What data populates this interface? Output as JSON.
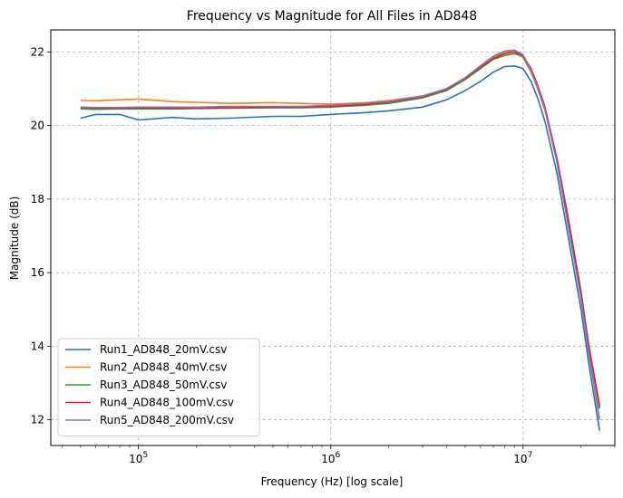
{
  "chart_data": {
    "type": "line",
    "title": "Frequency vs Magnitude for All Files in AD848",
    "xlabel": "Frequency (Hz) [log scale]",
    "ylabel": "Magnitude (dB)",
    "xscale": "log",
    "xlim": [
      35000,
      30000000
    ],
    "ylim": [
      11.3,
      22.6
    ],
    "grid": true,
    "legend_position": "lower-left",
    "x_ticks": [
      {
        "value": 100000,
        "base": "10",
        "exp": "5"
      },
      {
        "value": 1000000,
        "base": "10",
        "exp": "6"
      },
      {
        "value": 10000000,
        "base": "10",
        "exp": "7"
      }
    ],
    "y_ticks": [
      12,
      14,
      16,
      18,
      20,
      22
    ],
    "series": [
      {
        "name": "Run1_AD848_20mV.csv",
        "color": "#1f77b4",
        "x": [
          50000,
          60000,
          80000,
          100000,
          150000,
          200000,
          300000,
          500000,
          700000,
          1000000,
          1500000,
          2000000,
          3000000,
          4000000,
          5000000,
          6000000,
          7000000,
          8000000,
          9000000,
          10000000,
          11000000,
          12000000,
          13000000,
          15000000,
          17000000,
          20000000,
          22000000,
          25000000
        ],
        "y": [
          20.2,
          20.3,
          20.3,
          20.15,
          20.22,
          20.18,
          20.2,
          20.25,
          20.25,
          20.3,
          20.35,
          20.4,
          20.5,
          20.7,
          20.95,
          21.2,
          21.45,
          21.6,
          21.62,
          21.55,
          21.2,
          20.7,
          20.1,
          18.7,
          17.1,
          15.0,
          13.5,
          11.7
        ]
      },
      {
        "name": "Run2_AD848_40mV.csv",
        "color": "#ff7f0e",
        "x": [
          50000,
          60000,
          80000,
          100000,
          150000,
          200000,
          300000,
          500000,
          700000,
          1000000,
          1500000,
          2000000,
          3000000,
          4000000,
          5000000,
          6000000,
          7000000,
          8000000,
          9000000,
          10000000,
          11000000,
          12000000,
          13000000,
          15000000,
          17000000,
          20000000,
          22000000,
          25000000
        ],
        "y": [
          20.68,
          20.67,
          20.7,
          20.72,
          20.65,
          20.63,
          20.6,
          20.62,
          20.6,
          20.58,
          20.62,
          20.68,
          20.8,
          21.0,
          21.3,
          21.6,
          21.85,
          22.0,
          22.0,
          21.85,
          21.45,
          20.95,
          20.4,
          19.0,
          17.5,
          15.4,
          14.0,
          12.4
        ]
      },
      {
        "name": "Run3_AD848_50mV.csv",
        "color": "#2ca02c",
        "x": [
          50000,
          60000,
          80000,
          100000,
          150000,
          200000,
          300000,
          500000,
          700000,
          1000000,
          1500000,
          2000000,
          3000000,
          4000000,
          5000000,
          6000000,
          7000000,
          8000000,
          9000000,
          10000000,
          11000000,
          12000000,
          13000000,
          15000000,
          17000000,
          20000000,
          22000000,
          25000000
        ],
        "y": [
          20.45,
          20.44,
          20.45,
          20.45,
          20.45,
          20.46,
          20.47,
          20.48,
          20.48,
          20.5,
          20.55,
          20.6,
          20.75,
          20.95,
          21.25,
          21.55,
          21.8,
          21.9,
          21.95,
          21.88,
          21.5,
          21.0,
          20.45,
          19.1,
          17.6,
          15.5,
          14.0,
          12.3
        ]
      },
      {
        "name": "Run4_AD848_100mV.csv",
        "color": "#d62728",
        "x": [
          50000,
          60000,
          80000,
          100000,
          150000,
          200000,
          300000,
          500000,
          700000,
          1000000,
          1500000,
          2000000,
          3000000,
          4000000,
          5000000,
          6000000,
          7000000,
          8000000,
          9000000,
          10000000,
          11000000,
          12000000,
          13000000,
          15000000,
          17000000,
          20000000,
          22000000,
          25000000
        ],
        "y": [
          20.48,
          20.47,
          20.47,
          20.48,
          20.47,
          20.48,
          20.48,
          20.5,
          20.5,
          20.52,
          20.57,
          20.63,
          20.78,
          20.98,
          21.28,
          21.58,
          21.82,
          21.95,
          22.0,
          21.9,
          21.55,
          21.05,
          20.5,
          19.1,
          17.6,
          15.45,
          14.0,
          12.35
        ]
      },
      {
        "name": "Run5_AD848_200mV.csv",
        "color": "#9467bd",
        "x": [
          50000,
          60000,
          80000,
          100000,
          150000,
          200000,
          300000,
          500000,
          700000,
          1000000,
          1500000,
          2000000,
          3000000,
          4000000,
          5000000,
          6000000,
          7000000,
          8000000,
          9000000,
          10000000,
          11000000,
          12000000,
          13000000,
          15000000,
          17000000,
          20000000,
          22000000,
          25000000
        ],
        "y": [
          20.5,
          20.49,
          20.49,
          20.5,
          20.5,
          20.5,
          20.52,
          20.52,
          20.52,
          20.55,
          20.6,
          20.65,
          20.8,
          21.0,
          21.3,
          21.62,
          21.88,
          22.02,
          22.05,
          21.92,
          21.5,
          21.0,
          20.45,
          19.0,
          17.4,
          15.3,
          13.8,
          12.0
        ]
      }
    ]
  }
}
